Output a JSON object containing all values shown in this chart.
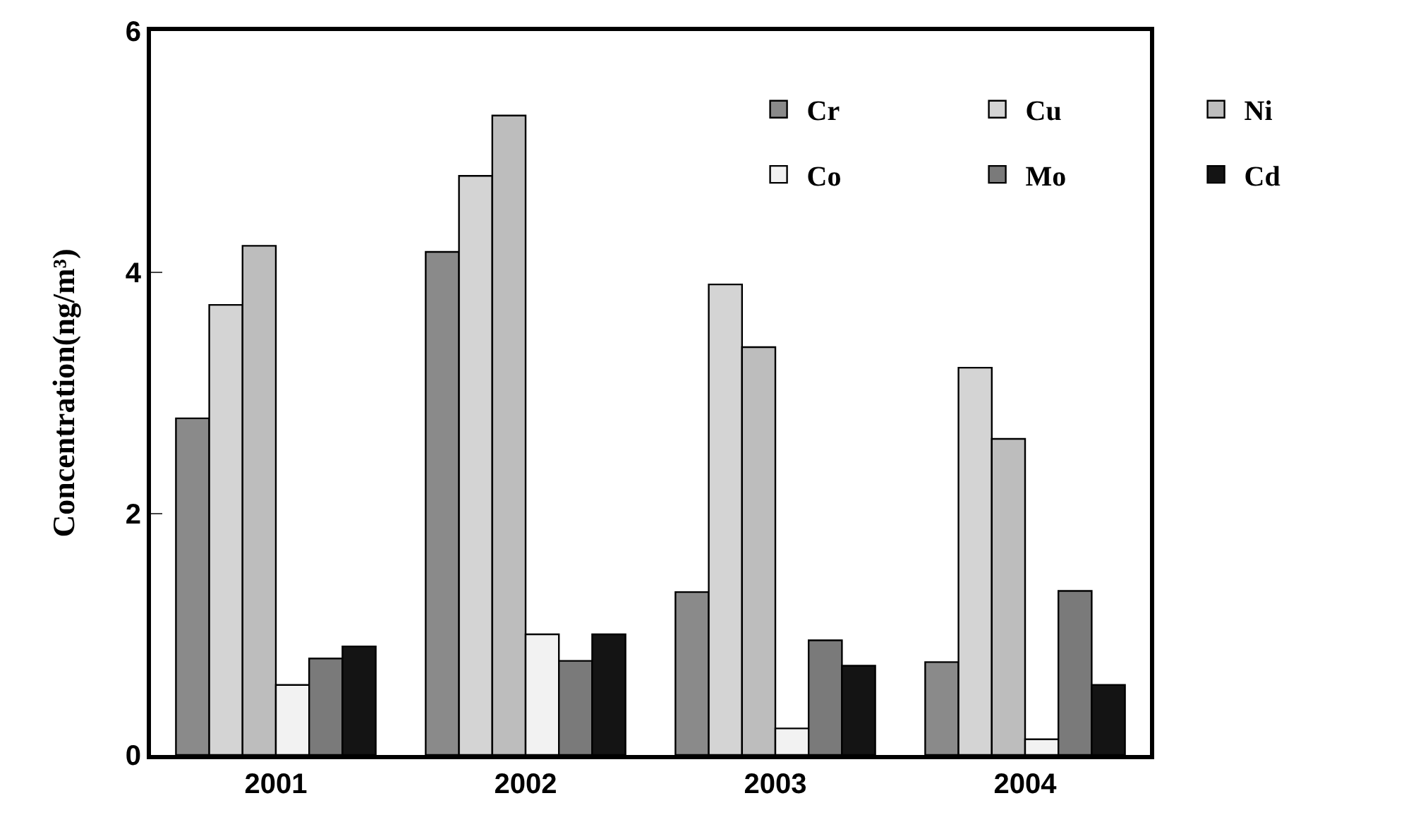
{
  "chart_data": {
    "type": "bar",
    "ylabel": "Concentration(ng/m³)",
    "categories": [
      "2001",
      "2002",
      "2003",
      "2004"
    ],
    "ylim": [
      0,
      6
    ],
    "yticks": [
      0,
      2,
      4,
      6
    ],
    "legend": "top right",
    "series": [
      {
        "name": "Cr",
        "color": "#8a8a8a",
        "values": [
          2.79,
          4.17,
          1.35,
          0.77
        ]
      },
      {
        "name": "Cu",
        "color": "#d4d4d4",
        "values": [
          3.73,
          4.8,
          3.9,
          3.21
        ]
      },
      {
        "name": "Ni",
        "color": "#bdbdbd",
        "values": [
          4.22,
          5.3,
          3.38,
          2.62
        ]
      },
      {
        "name": "Co",
        "color": "#f2f2f2",
        "values": [
          0.58,
          1.0,
          0.22,
          0.13
        ]
      },
      {
        "name": "Mo",
        "color": "#7a7a7a",
        "values": [
          0.8,
          0.78,
          0.95,
          1.36
        ]
      },
      {
        "name": "Cd",
        "color": "#141414",
        "values": [
          0.9,
          1.0,
          0.74,
          0.58
        ]
      }
    ]
  }
}
